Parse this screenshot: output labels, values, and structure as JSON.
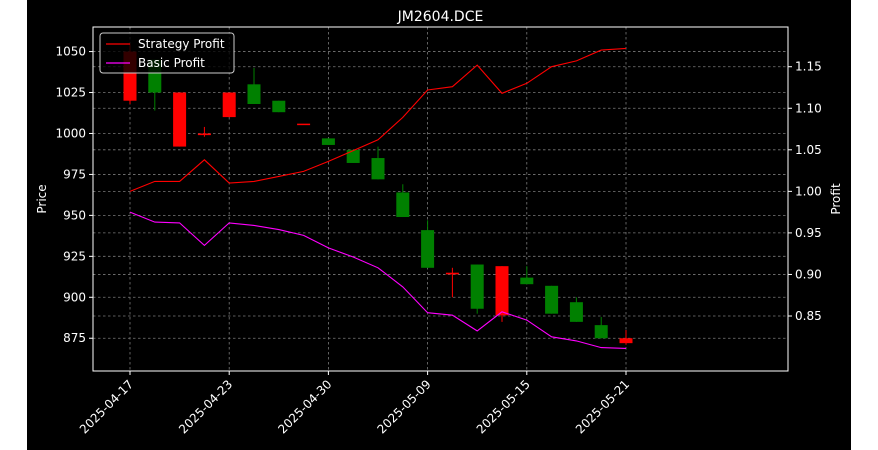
{
  "chart_data": {
    "type": "candlestick",
    "title": "JM2604.DCE",
    "ylabel_left": "Price",
    "ylabel_right": "Profit",
    "ylim_left": [
      855,
      1065
    ],
    "ylim_right": [
      0.7838,
      1.1978
    ],
    "yticks_left": [
      875,
      900,
      925,
      950,
      975,
      1000,
      1025,
      1050
    ],
    "yticks_right": [
      0.85,
      0.9,
      0.95,
      1.0,
      1.05,
      1.1,
      1.15
    ],
    "yticks_right_labels": [
      "0.85",
      "0.90",
      "0.95",
      "1.00",
      "1.05",
      "1.10",
      "1.15"
    ],
    "xtick_labels": [
      "2025-04-17",
      "2025-04-23",
      "2025-04-30",
      "2025-05-09",
      "2025-05-15",
      "2025-05-21"
    ],
    "xtick_index": [
      0,
      4,
      8,
      12,
      16,
      20
    ],
    "grid": true,
    "legend_placement": "top-left",
    "colors": {
      "background": "#000000",
      "text": "#ffffff",
      "grid": "#7a7a7a",
      "up": "#ff0000",
      "down": "#008000",
      "strategy": "#ff0000",
      "basic": "#ff00ff"
    },
    "candles": [
      {
        "open": 1020,
        "high": 1055,
        "low": 1018,
        "close": 1050
      },
      {
        "open": 1045,
        "high": 1045,
        "low": 1014,
        "close": 1025
      },
      {
        "open": 992,
        "high": 1025,
        "low": 992,
        "close": 1025
      },
      {
        "open": 999,
        "high": 1004,
        "low": 998,
        "close": 1000
      },
      {
        "open": 1010,
        "high": 1025,
        "low": 1010,
        "close": 1025
      },
      {
        "open": 1030,
        "high": 1040,
        "low": 1018,
        "close": 1018
      },
      {
        "open": 1020,
        "high": 1020,
        "low": 1013,
        "close": 1013
      },
      {
        "open": 1006,
        "high": 1006,
        "low": 1006,
        "close": 1006
      },
      {
        "open": 997,
        "high": 997,
        "low": 993,
        "close": 993
      },
      {
        "open": 990,
        "high": 990,
        "low": 982,
        "close": 982
      },
      {
        "open": 985,
        "high": 992,
        "low": 972,
        "close": 972
      },
      {
        "open": 964,
        "high": 969,
        "low": 949,
        "close": 949
      },
      {
        "open": 941,
        "high": 947,
        "low": 918,
        "close": 918
      },
      {
        "open": 914,
        "high": 918,
        "low": 900,
        "close": 915
      },
      {
        "open": 920,
        "high": 920,
        "low": 890,
        "close": 893
      },
      {
        "open": 889,
        "high": 919,
        "low": 885,
        "close": 919
      },
      {
        "open": 912,
        "high": 919,
        "low": 908,
        "close": 908
      },
      {
        "open": 907,
        "high": 907,
        "low": 890,
        "close": 890
      },
      {
        "open": 897,
        "high": 900,
        "low": 885,
        "close": 885
      },
      {
        "open": 883,
        "high": 888,
        "low": 875,
        "close": 875
      },
      {
        "open": 872,
        "high": 880,
        "low": 871,
        "close": 875
      }
    ],
    "series": [
      {
        "name": "Strategy Profit",
        "values": [
          1.0,
          1.012,
          1.012,
          1.038,
          1.01,
          1.012,
          1.018,
          1.024,
          1.036,
          1.049,
          1.062,
          1.089,
          1.122,
          1.126,
          1.152,
          1.118,
          1.13,
          1.15,
          1.157,
          1.17,
          1.172
        ]
      },
      {
        "name": "Basic Profit",
        "values": [
          0.975,
          0.963,
          0.962,
          0.935,
          0.962,
          0.959,
          0.954,
          0.947,
          0.932,
          0.921,
          0.908,
          0.885,
          0.854,
          0.851,
          0.832,
          0.855,
          0.845,
          0.825,
          0.82,
          0.812,
          0.811
        ]
      }
    ]
  }
}
